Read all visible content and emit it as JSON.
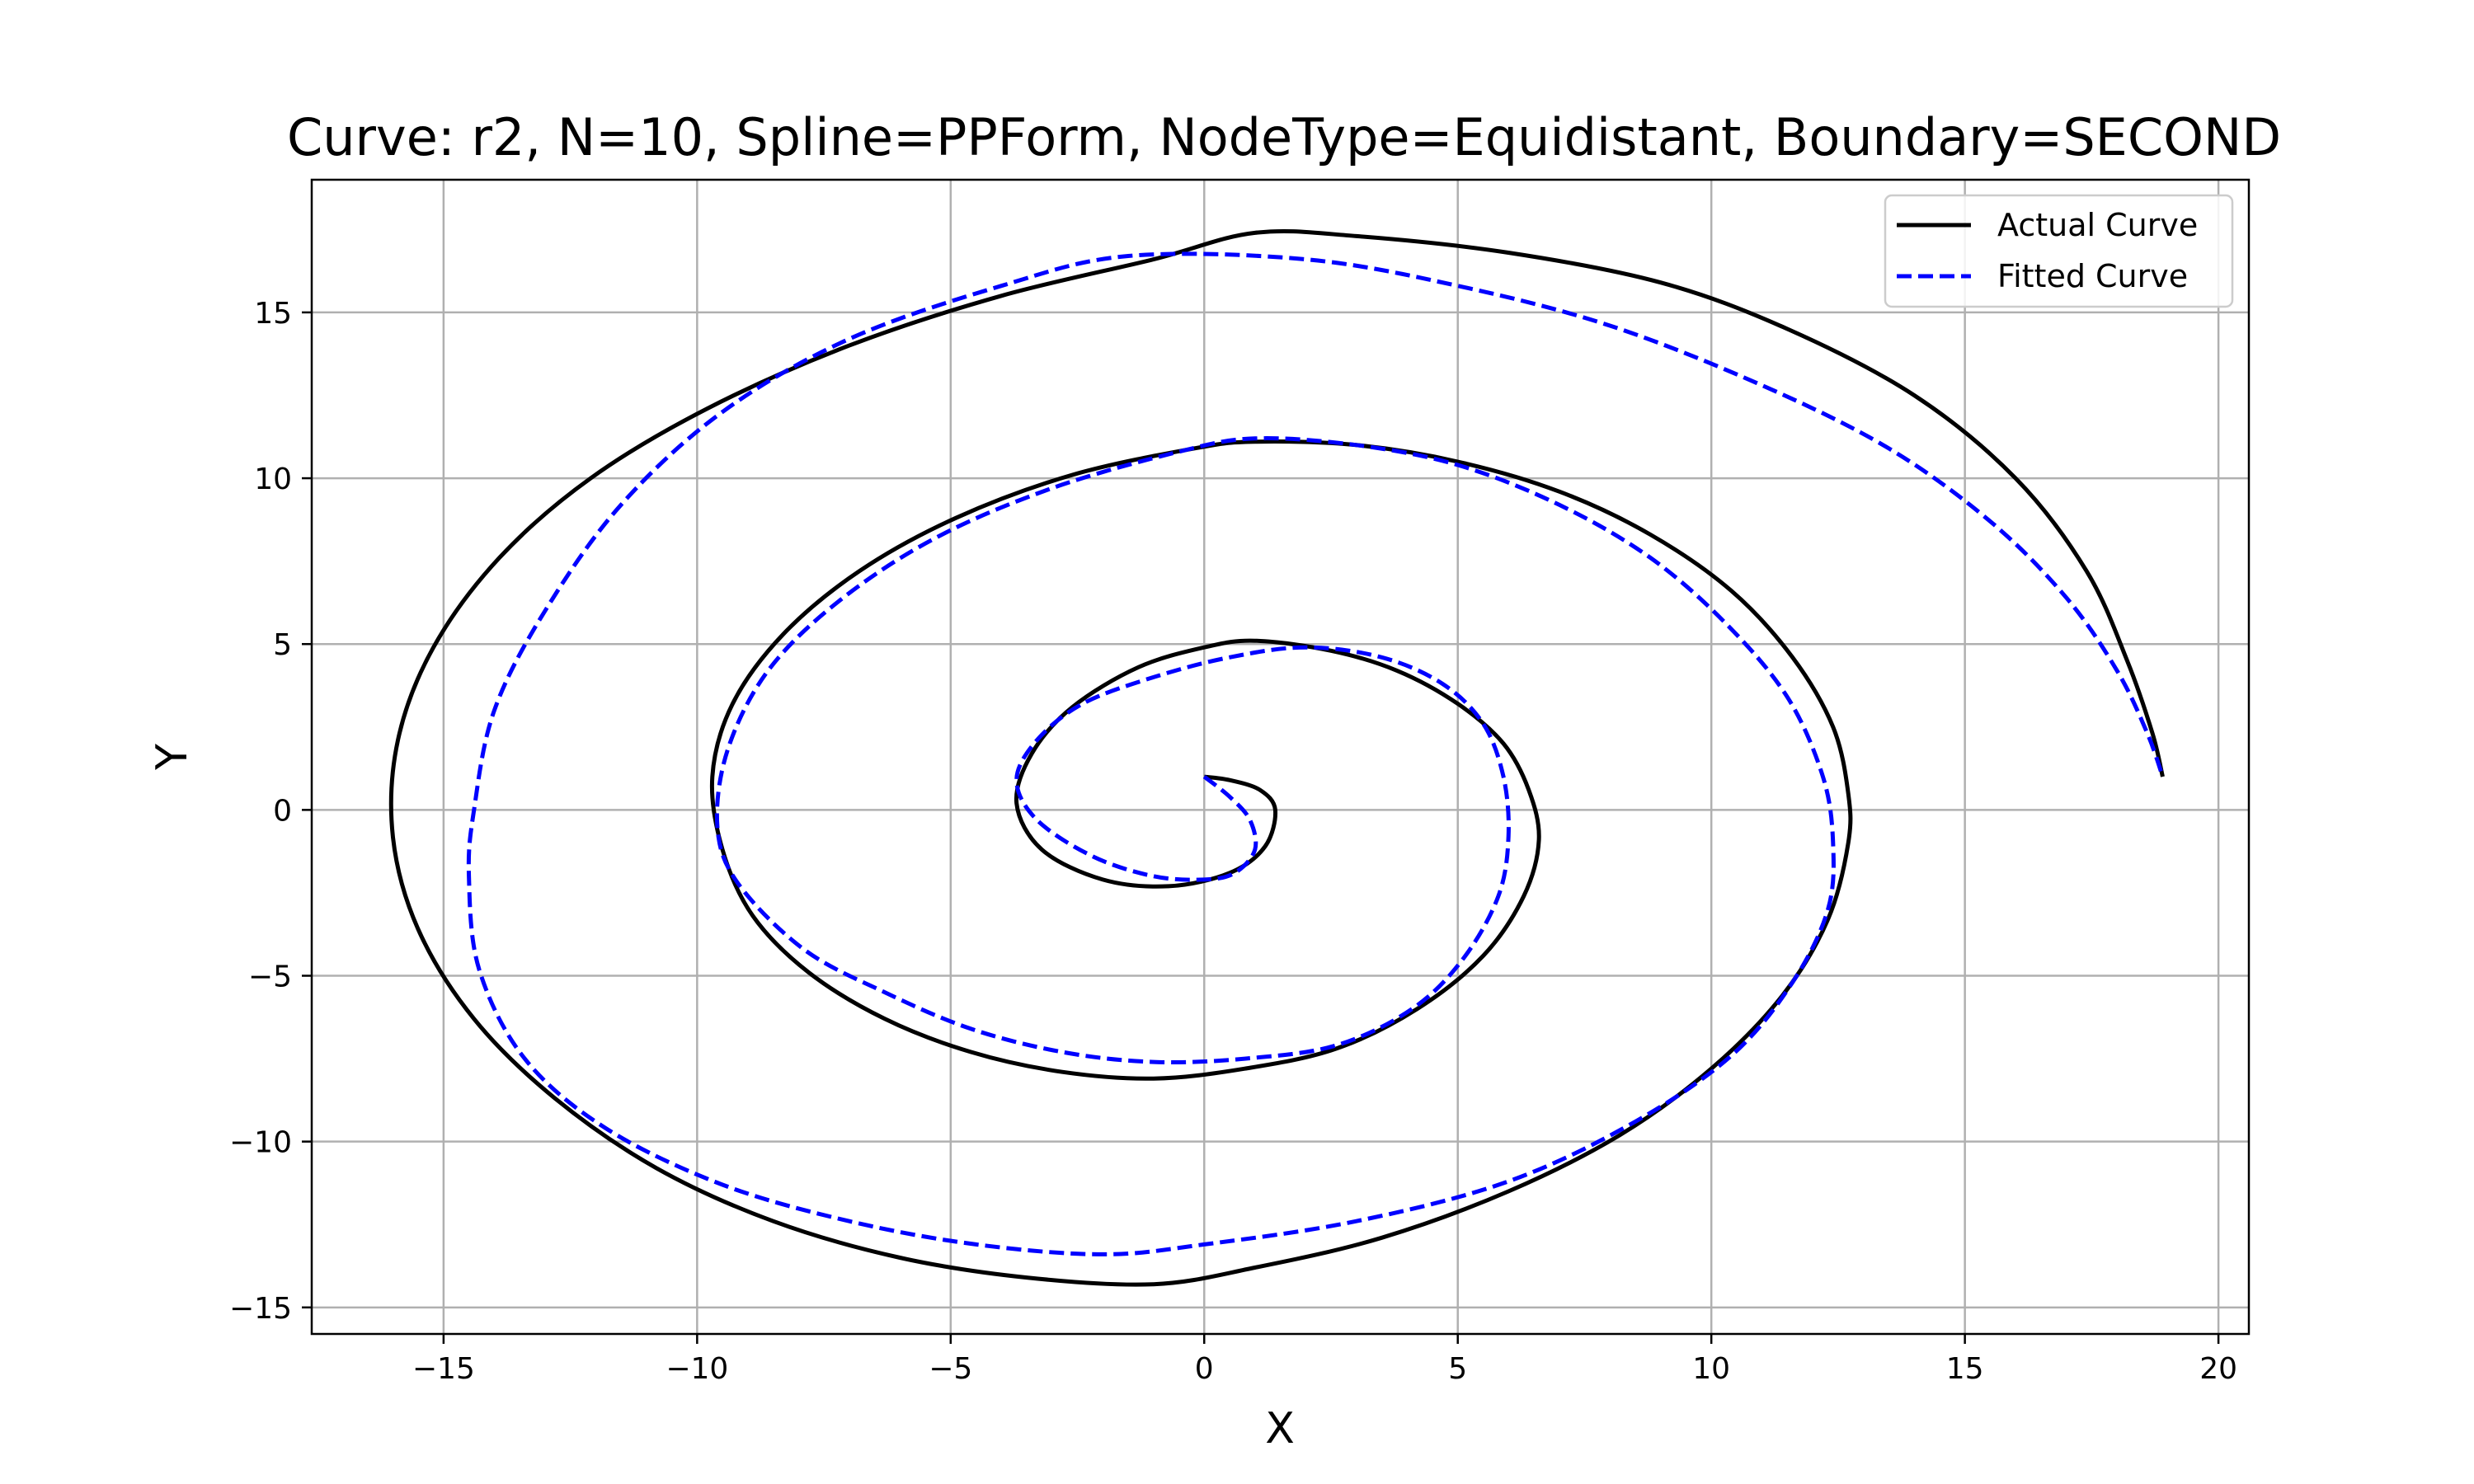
{
  "chart_data": {
    "type": "line",
    "title": "Curve: r2, N=10, Spline=PPForm, NodeType=Equidistant, Boundary=SECOND",
    "xlabel": "X",
    "ylabel": "Y",
    "xlim": [
      -17.6,
      20.6
    ],
    "ylim": [
      -15.8,
      19.0
    ],
    "xticks": [
      -15,
      -10,
      -5,
      0,
      5,
      10,
      15,
      20
    ],
    "xtick_labels": [
      "−15",
      "−10",
      "−5",
      "0",
      "5",
      "10",
      "15",
      "20"
    ],
    "yticks": [
      -15,
      -10,
      -5,
      0,
      5,
      10,
      15
    ],
    "ytick_labels": [
      "−15",
      "−10",
      "−5",
      "0",
      "5",
      "10",
      "15"
    ],
    "grid": true,
    "legend_position": "top-right",
    "series": [
      {
        "name": "Actual Curve",
        "color": "#000000",
        "style": "solid",
        "points": [
          [
            0.0,
            1.0
          ],
          [
            0.5,
            0.9
          ],
          [
            1.1,
            0.6
          ],
          [
            1.4,
            0.0
          ],
          [
            1.2,
            -1.1
          ],
          [
            0.5,
            -1.9
          ],
          [
            -0.7,
            -2.3
          ],
          [
            -2.0,
            -2.1
          ],
          [
            -3.2,
            -1.2
          ],
          [
            -3.7,
            0.2
          ],
          [
            -3.4,
            1.7
          ],
          [
            -2.6,
            3.1
          ],
          [
            -1.3,
            4.3
          ],
          [
            0.0,
            4.9
          ],
          [
            1.0,
            5.1
          ],
          [
            2.5,
            4.8
          ],
          [
            3.8,
            4.2
          ],
          [
            5.0,
            3.2
          ],
          [
            5.9,
            2.0
          ],
          [
            6.4,
            0.6
          ],
          [
            6.6,
            -0.9
          ],
          [
            6.3,
            -2.6
          ],
          [
            5.5,
            -4.4
          ],
          [
            4.2,
            -6.0
          ],
          [
            2.6,
            -7.2
          ],
          [
            0.8,
            -7.8
          ],
          [
            -1.0,
            -8.1
          ],
          [
            -2.8,
            -7.9
          ],
          [
            -4.6,
            -7.3
          ],
          [
            -6.3,
            -6.3
          ],
          [
            -7.8,
            -4.9
          ],
          [
            -8.9,
            -3.2
          ],
          [
            -9.5,
            -1.2
          ],
          [
            -9.7,
            1.0
          ],
          [
            -9.3,
            3.2
          ],
          [
            -8.3,
            5.3
          ],
          [
            -6.8,
            7.2
          ],
          [
            -4.9,
            8.8
          ],
          [
            -2.6,
            10.1
          ],
          [
            -0.2,
            10.9
          ],
          [
            1.0,
            11.1
          ],
          [
            3.0,
            11.0
          ],
          [
            5.0,
            10.5
          ],
          [
            7.0,
            9.6
          ],
          [
            8.8,
            8.3
          ],
          [
            10.4,
            6.6
          ],
          [
            11.6,
            4.6
          ],
          [
            12.4,
            2.5
          ],
          [
            12.7,
            0.5
          ],
          [
            12.7,
            -1.0
          ],
          [
            12.3,
            -3.3
          ],
          [
            11.4,
            -5.6
          ],
          [
            10.0,
            -7.8
          ],
          [
            8.2,
            -9.8
          ],
          [
            6.0,
            -11.5
          ],
          [
            3.5,
            -12.9
          ],
          [
            1.0,
            -13.8
          ],
          [
            -1.0,
            -14.3
          ],
          [
            -3.5,
            -14.1
          ],
          [
            -6.0,
            -13.5
          ],
          [
            -8.5,
            -12.4
          ],
          [
            -10.8,
            -10.8
          ],
          [
            -12.8,
            -8.7
          ],
          [
            -14.4,
            -6.3
          ],
          [
            -15.5,
            -3.6
          ],
          [
            -16.0,
            -0.8
          ],
          [
            -15.9,
            2.1
          ],
          [
            -15.2,
            4.9
          ],
          [
            -13.9,
            7.6
          ],
          [
            -12.1,
            10.0
          ],
          [
            -9.8,
            12.1
          ],
          [
            -7.0,
            14.0
          ],
          [
            -4.0,
            15.5
          ],
          [
            -1.0,
            16.6
          ],
          [
            1.0,
            17.4
          ],
          [
            3.0,
            17.3
          ],
          [
            6.0,
            16.8
          ],
          [
            9.0,
            15.9
          ],
          [
            11.5,
            14.5
          ],
          [
            14.0,
            12.5
          ],
          [
            16.0,
            10.0
          ],
          [
            17.4,
            7.2
          ],
          [
            18.2,
            4.5
          ],
          [
            18.7,
            2.3
          ],
          [
            18.9,
            1.0
          ]
        ]
      },
      {
        "name": "Fitted Curve",
        "color": "#0000ff",
        "style": "dashed",
        "points": [
          [
            0.0,
            1.0
          ],
          [
            0.5,
            0.4
          ],
          [
            0.9,
            -0.3
          ],
          [
            1.0,
            -1.2
          ],
          [
            0.6,
            -1.9
          ],
          [
            0.0,
            -2.1
          ],
          [
            -1.0,
            -2.0
          ],
          [
            -2.2,
            -1.4
          ],
          [
            -3.3,
            -0.3
          ],
          [
            -3.7,
            0.9
          ],
          [
            -3.3,
            2.1
          ],
          [
            -2.4,
            3.2
          ],
          [
            -1.0,
            4.0
          ],
          [
            0.5,
            4.6
          ],
          [
            2.0,
            4.9
          ],
          [
            3.5,
            4.6
          ],
          [
            4.7,
            3.8
          ],
          [
            5.5,
            2.6
          ],
          [
            5.9,
            1.0
          ],
          [
            6.0,
            -0.8
          ],
          [
            5.8,
            -2.6
          ],
          [
            5.1,
            -4.5
          ],
          [
            4.1,
            -6.0
          ],
          [
            2.6,
            -7.1
          ],
          [
            0.8,
            -7.5
          ],
          [
            -1.0,
            -7.6
          ],
          [
            -2.8,
            -7.3
          ],
          [
            -4.6,
            -6.6
          ],
          [
            -6.3,
            -5.5
          ],
          [
            -7.9,
            -4.2
          ],
          [
            -9.2,
            -2.2
          ],
          [
            -9.6,
            -0.5
          ],
          [
            -9.4,
            1.8
          ],
          [
            -8.6,
            4.2
          ],
          [
            -7.2,
            6.3
          ],
          [
            -5.3,
            8.2
          ],
          [
            -3.0,
            9.7
          ],
          [
            -0.5,
            10.8
          ],
          [
            1.0,
            11.2
          ],
          [
            3.0,
            11.0
          ],
          [
            5.0,
            10.4
          ],
          [
            7.0,
            9.2
          ],
          [
            8.8,
            7.6
          ],
          [
            10.3,
            5.6
          ],
          [
            11.5,
            3.4
          ],
          [
            12.2,
            1.0
          ],
          [
            12.4,
            -1.0
          ],
          [
            12.3,
            -3.0
          ],
          [
            11.6,
            -5.2
          ],
          [
            10.4,
            -7.4
          ],
          [
            8.5,
            -9.4
          ],
          [
            6.0,
            -11.2
          ],
          [
            3.0,
            -12.4
          ],
          [
            0.0,
            -13.1
          ],
          [
            -2.0,
            -13.4
          ],
          [
            -4.5,
            -13.1
          ],
          [
            -7.0,
            -12.4
          ],
          [
            -9.5,
            -11.3
          ],
          [
            -11.8,
            -9.6
          ],
          [
            -13.4,
            -7.5
          ],
          [
            -14.3,
            -4.8
          ],
          [
            -14.5,
            -2.0
          ],
          [
            -14.4,
            0.0
          ],
          [
            -14.0,
            3.0
          ],
          [
            -13.0,
            6.0
          ],
          [
            -11.5,
            9.2
          ],
          [
            -9.5,
            12.0
          ],
          [
            -7.0,
            14.2
          ],
          [
            -4.0,
            15.8
          ],
          [
            -1.5,
            16.7
          ],
          [
            2.0,
            16.6
          ],
          [
            5.0,
            15.8
          ],
          [
            8.0,
            14.6
          ],
          [
            11.0,
            12.8
          ],
          [
            13.5,
            10.9
          ],
          [
            15.5,
            8.7
          ],
          [
            17.0,
            6.4
          ],
          [
            18.0,
            4.2
          ],
          [
            18.6,
            2.3
          ],
          [
            18.9,
            1.0
          ]
        ]
      }
    ]
  }
}
